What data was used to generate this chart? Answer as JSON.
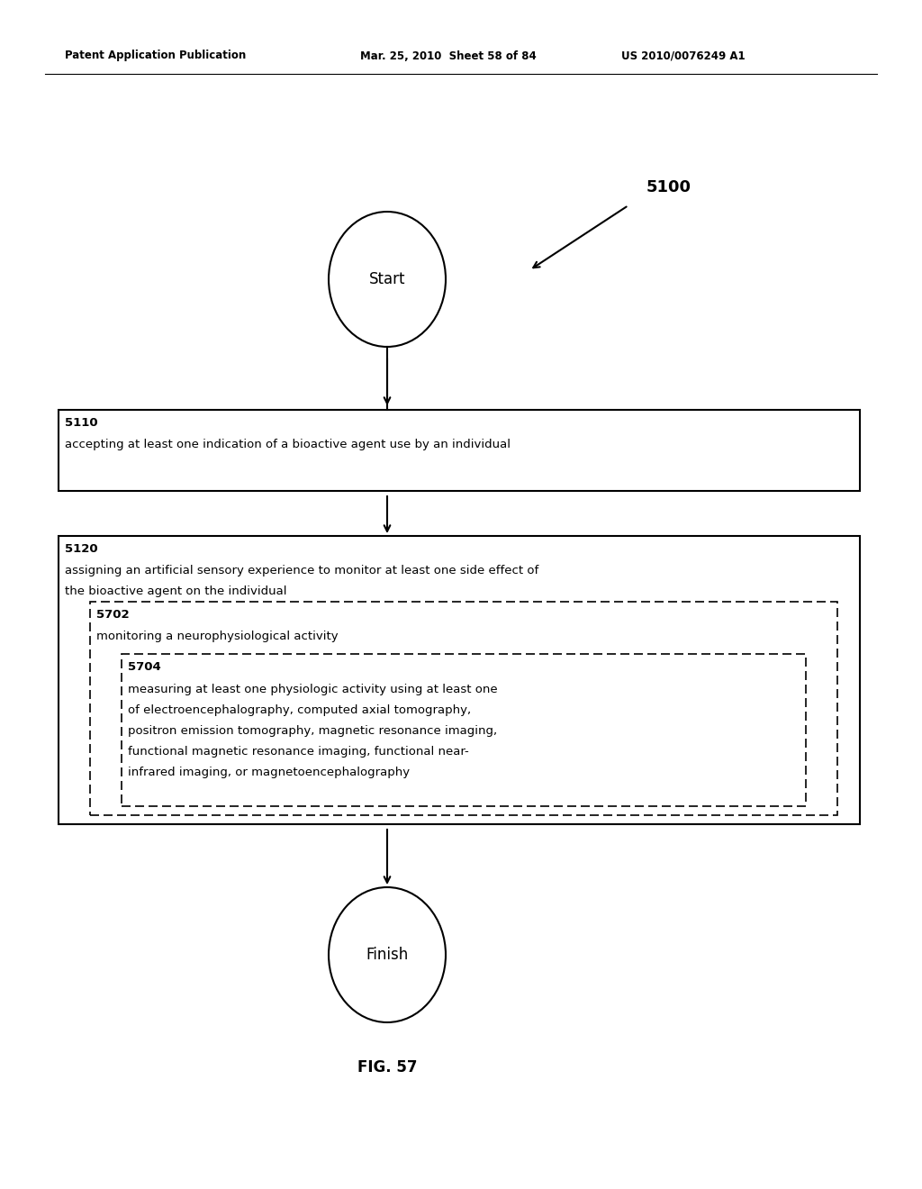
{
  "header_left": "Patent Application Publication",
  "header_mid": "Mar. 25, 2010  Sheet 58 of 84",
  "header_right": "US 2010/0076249 A1",
  "fig_label": "FIG. 57",
  "diagram_label": "5100",
  "start_label": "Start",
  "finish_label": "Finish",
  "box1_id": "5110",
  "box1_text": "accepting at least one indication of a bioactive agent use by an individual",
  "box2_id": "5120",
  "box2_line1": "assigning an artificial sensory experience to monitor at least one side effect of",
  "box2_line2": "the bioactive agent on the individual",
  "box3_id": "5702",
  "box3_text": "monitoring a neurophysiological activity",
  "box4_id": "5704",
  "box4_line1": "measuring at least one physiologic activity using at least one",
  "box4_line2": "of electroencephalography, computed axial tomography,",
  "box4_line3": "positron emission tomography, magnetic resonance imaging,",
  "box4_line4": "functional magnetic resonance imaging, functional near-",
  "box4_line5": "infrared imaging, or magnetoencephalography",
  "bg_color": "#ffffff",
  "line_color": "#000000",
  "text_color": "#000000"
}
